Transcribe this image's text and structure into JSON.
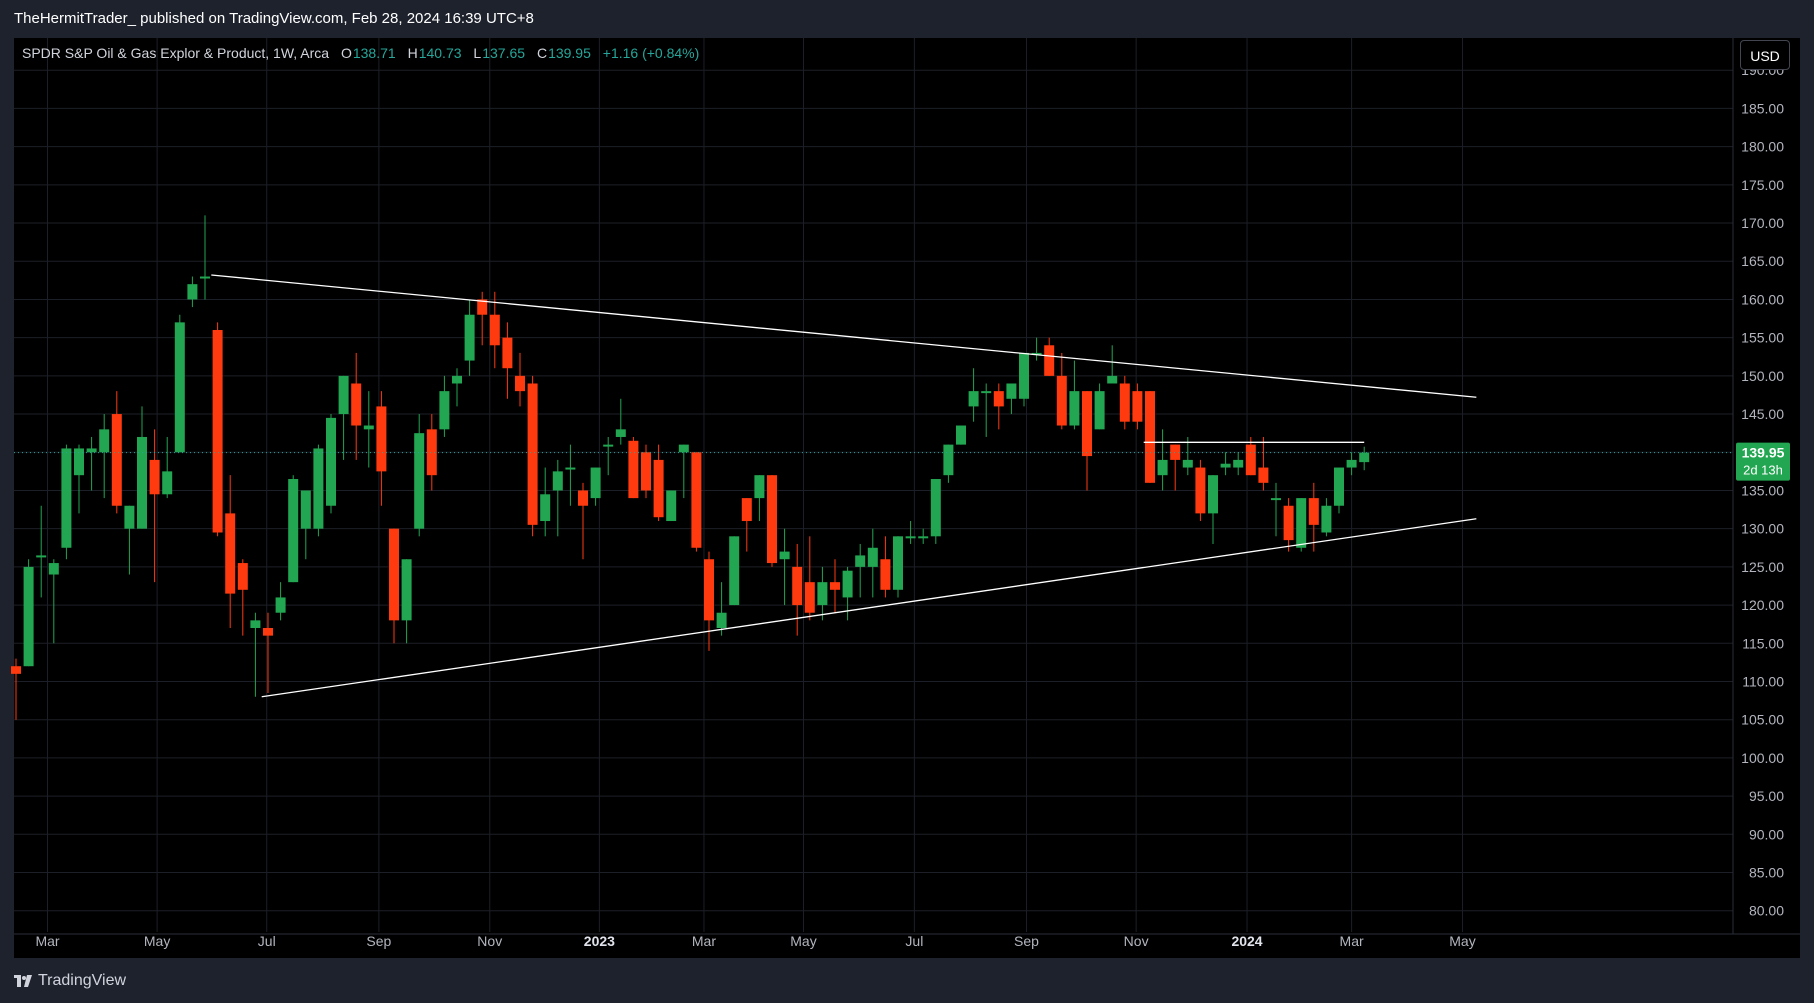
{
  "header": {
    "publisher_text": "TheHermitTrader_ published on TradingView.com, Feb 28, 2024 16:39 UTC+8"
  },
  "footer": {
    "brand": "TradingView"
  },
  "currency_button": "USD",
  "legend": {
    "symbol": "SPDR S&P Oil & Gas Explor & Product, 1W, Arca",
    "o_label": "O",
    "o": "138.71",
    "h_label": "H",
    "h": "140.73",
    "l_label": "L",
    "l": "137.65",
    "c_label": "C",
    "c": "139.95",
    "change": "+1.16 (+0.84%)"
  },
  "price_badge": {
    "price": "139.95",
    "countdown": "2d 13h"
  },
  "colors": {
    "up": "#22a651",
    "down": "#ff3a0f",
    "grid": "#1c1f27",
    "axis_text": "#b2b5be",
    "trend": "#ffffff",
    "dotted": "#26a69a"
  },
  "chart_data": {
    "type": "candlestick",
    "interval": "1W",
    "ylim": [
      78.0,
      193.3
    ],
    "y_ticks": [
      "190.00",
      "185.00",
      "180.00",
      "175.00",
      "170.00",
      "165.00",
      "160.00",
      "155.00",
      "150.00",
      "145.00",
      "140.00",
      "135.00",
      "130.00",
      "125.00",
      "120.00",
      "115.00",
      "110.00",
      "105.00",
      "100.00",
      "95.00",
      "90.00",
      "85.00",
      "80.00"
    ],
    "x_ticks": [
      {
        "label": "Mar",
        "t": 2.5,
        "bold": false
      },
      {
        "label": "May",
        "t": 11.2,
        "bold": false
      },
      {
        "label": "Jul",
        "t": 19.9,
        "bold": false
      },
      {
        "label": "Sep",
        "t": 28.8,
        "bold": false
      },
      {
        "label": "Nov",
        "t": 37.6,
        "bold": false
      },
      {
        "label": "2023",
        "t": 46.3,
        "bold": true
      },
      {
        "label": "Mar",
        "t": 54.6,
        "bold": false
      },
      {
        "label": "May",
        "t": 62.5,
        "bold": false
      },
      {
        "label": "Jul",
        "t": 71.3,
        "bold": false
      },
      {
        "label": "Sep",
        "t": 80.2,
        "bold": false
      },
      {
        "label": "Nov",
        "t": 88.9,
        "bold": false
      },
      {
        "label": "2024",
        "t": 97.7,
        "bold": true
      },
      {
        "label": "Mar",
        "t": 106.0,
        "bold": false
      },
      {
        "label": "May",
        "t": 114.8,
        "bold": false
      }
    ],
    "candles": [
      {
        "o": 112,
        "h": 113,
        "l": 105,
        "c": 111
      },
      {
        "o": 112,
        "h": 126,
        "l": 112,
        "c": 125
      },
      {
        "o": 126.5,
        "h": 133,
        "l": 121,
        "c": 126.5
      },
      {
        "o": 124,
        "h": 126,
        "l": 115,
        "c": 125.5
      },
      {
        "o": 127.5,
        "h": 141,
        "l": 126,
        "c": 140.5
      },
      {
        "o": 137,
        "h": 141,
        "l": 132,
        "c": 140.5
      },
      {
        "o": 140,
        "h": 142,
        "l": 135,
        "c": 140.5
      },
      {
        "o": 140,
        "h": 145,
        "l": 134,
        "c": 143
      },
      {
        "o": 145,
        "h": 148,
        "l": 132,
        "c": 133
      },
      {
        "o": 130,
        "h": 133,
        "l": 124,
        "c": 133
      },
      {
        "o": 130,
        "h": 146,
        "l": 130,
        "c": 142
      },
      {
        "o": 139,
        "h": 143,
        "l": 123,
        "c": 134.5
      },
      {
        "o": 134.5,
        "h": 142,
        "l": 134,
        "c": 137.5
      },
      {
        "o": 140,
        "h": 158,
        "l": 140,
        "c": 157
      },
      {
        "o": 160,
        "h": 163,
        "l": 159,
        "c": 162
      },
      {
        "o": 163,
        "h": 171,
        "l": 160,
        "c": 163
      },
      {
        "o": 156,
        "h": 157,
        "l": 129,
        "c": 129.5
      },
      {
        "o": 132,
        "h": 137,
        "l": 117,
        "c": 121.5
      },
      {
        "o": 125.5,
        "h": 126,
        "l": 116,
        "c": 122
      },
      {
        "o": 117,
        "h": 119,
        "l": 108,
        "c": 118
      },
      {
        "o": 117,
        "h": 119,
        "l": 108.5,
        "c": 116
      },
      {
        "o": 119,
        "h": 123,
        "l": 118,
        "c": 121
      },
      {
        "o": 123,
        "h": 137,
        "l": 123,
        "c": 136.5
      },
      {
        "o": 130,
        "h": 134,
        "l": 126,
        "c": 135
      },
      {
        "o": 130,
        "h": 141,
        "l": 129,
        "c": 140.5
      },
      {
        "o": 133,
        "h": 145,
        "l": 132,
        "c": 144.5
      },
      {
        "o": 145,
        "h": 150,
        "l": 139,
        "c": 150
      },
      {
        "o": 149,
        "h": 153,
        "l": 139,
        "c": 143.5
      },
      {
        "o": 143,
        "h": 148,
        "l": 138,
        "c": 143.5
      },
      {
        "o": 146,
        "h": 148,
        "l": 133,
        "c": 137.5
      },
      {
        "o": 130,
        "h": 130,
        "l": 115,
        "c": 118
      },
      {
        "o": 118,
        "h": 126,
        "l": 115,
        "c": 126
      },
      {
        "o": 130,
        "h": 145,
        "l": 129,
        "c": 142.5
      },
      {
        "o": 143,
        "h": 145,
        "l": 135,
        "c": 137
      },
      {
        "o": 143,
        "h": 150,
        "l": 142,
        "c": 148
      },
      {
        "o": 149,
        "h": 151,
        "l": 146,
        "c": 150
      },
      {
        "o": 152,
        "h": 160,
        "l": 150,
        "c": 158
      },
      {
        "o": 160,
        "h": 161,
        "l": 154,
        "c": 158
      },
      {
        "o": 158,
        "h": 161,
        "l": 151,
        "c": 154
      },
      {
        "o": 155,
        "h": 157,
        "l": 147,
        "c": 151
      },
      {
        "o": 150,
        "h": 153,
        "l": 146,
        "c": 148
      },
      {
        "o": 149,
        "h": 150,
        "l": 129,
        "c": 130.5
      },
      {
        "o": 131,
        "h": 138,
        "l": 129,
        "c": 134.5
      },
      {
        "o": 135,
        "h": 139,
        "l": 129,
        "c": 137.5
      },
      {
        "o": 138,
        "h": 141,
        "l": 133,
        "c": 138
      },
      {
        "o": 135,
        "h": 136,
        "l": 126,
        "c": 133
      },
      {
        "o": 134,
        "h": 138,
        "l": 133,
        "c": 138
      },
      {
        "o": 141,
        "h": 142,
        "l": 137,
        "c": 141
      },
      {
        "o": 142,
        "h": 147,
        "l": 141,
        "c": 143
      },
      {
        "o": 141.5,
        "h": 142,
        "l": 134,
        "c": 134
      },
      {
        "o": 140,
        "h": 141,
        "l": 134,
        "c": 135
      },
      {
        "o": 139,
        "h": 141,
        "l": 131,
        "c": 131.5
      },
      {
        "o": 131,
        "h": 135,
        "l": 131,
        "c": 135
      },
      {
        "o": 140,
        "h": 141,
        "l": 134,
        "c": 141
      },
      {
        "o": 140,
        "h": 140,
        "l": 127,
        "c": 127.5
      },
      {
        "o": 126,
        "h": 127,
        "l": 114,
        "c": 118
      },
      {
        "o": 117,
        "h": 123,
        "l": 116,
        "c": 119
      },
      {
        "o": 120,
        "h": 129,
        "l": 120,
        "c": 129
      },
      {
        "o": 134,
        "h": 134,
        "l": 127,
        "c": 131
      },
      {
        "o": 134,
        "h": 137,
        "l": 131,
        "c": 137
      },
      {
        "o": 137,
        "h": 137,
        "l": 125,
        "c": 125.5
      },
      {
        "o": 126,
        "h": 130,
        "l": 120,
        "c": 127
      },
      {
        "o": 125,
        "h": 128,
        "l": 116,
        "c": 120
      },
      {
        "o": 123,
        "h": 129,
        "l": 118,
        "c": 119
      },
      {
        "o": 120,
        "h": 125,
        "l": 118,
        "c": 123
      },
      {
        "o": 123,
        "h": 126,
        "l": 119,
        "c": 122
      },
      {
        "o": 121,
        "h": 125,
        "l": 118,
        "c": 124.5
      },
      {
        "o": 125,
        "h": 128,
        "l": 121,
        "c": 126.5
      },
      {
        "o": 125,
        "h": 130,
        "l": 121,
        "c": 127.5
      },
      {
        "o": 126,
        "h": 129,
        "l": 121,
        "c": 122
      },
      {
        "o": 122,
        "h": 129,
        "l": 121,
        "c": 129
      },
      {
        "o": 129,
        "h": 131,
        "l": 128,
        "c": 129
      },
      {
        "o": 129,
        "h": 130,
        "l": 128,
        "c": 129
      },
      {
        "o": 129,
        "h": 136,
        "l": 128,
        "c": 136.5
      },
      {
        "o": 137,
        "h": 141,
        "l": 136,
        "c": 141
      },
      {
        "o": 141,
        "h": 143,
        "l": 141,
        "c": 143.5
      },
      {
        "o": 146,
        "h": 151,
        "l": 144,
        "c": 148
      },
      {
        "o": 148,
        "h": 149,
        "l": 142,
        "c": 148
      },
      {
        "o": 148,
        "h": 149,
        "l": 143,
        "c": 146
      },
      {
        "o": 147,
        "h": 149,
        "l": 145,
        "c": 149
      },
      {
        "o": 147,
        "h": 153,
        "l": 146,
        "c": 153
      },
      {
        "o": 153,
        "h": 155,
        "l": 152,
        "c": 153
      },
      {
        "o": 154,
        "h": 155,
        "l": 150,
        "c": 150
      },
      {
        "o": 150,
        "h": 153,
        "l": 143,
        "c": 143.5
      },
      {
        "o": 143.5,
        "h": 152,
        "l": 143,
        "c": 148
      },
      {
        "o": 148,
        "h": 148,
        "l": 135,
        "c": 139.5
      },
      {
        "o": 143,
        "h": 149,
        "l": 143,
        "c": 148
      },
      {
        "o": 149,
        "h": 154,
        "l": 149,
        "c": 150
      },
      {
        "o": 149,
        "h": 150,
        "l": 143,
        "c": 144
      },
      {
        "o": 148,
        "h": 149,
        "l": 143,
        "c": 144
      },
      {
        "o": 148,
        "h": 148,
        "l": 136,
        "c": 136
      },
      {
        "o": 137,
        "h": 143,
        "l": 135,
        "c": 139
      },
      {
        "o": 141,
        "h": 141,
        "l": 135,
        "c": 139
      },
      {
        "o": 138,
        "h": 142,
        "l": 137,
        "c": 139
      },
      {
        "o": 138,
        "h": 139,
        "l": 131,
        "c": 132
      },
      {
        "o": 132,
        "h": 137,
        "l": 128,
        "c": 137
      },
      {
        "o": 138,
        "h": 140,
        "l": 137,
        "c": 138.5
      },
      {
        "o": 138,
        "h": 140,
        "l": 137,
        "c": 139
      },
      {
        "o": 141,
        "h": 142,
        "l": 137,
        "c": 137
      },
      {
        "o": 138,
        "h": 142,
        "l": 135,
        "c": 136
      },
      {
        "o": 134,
        "h": 136,
        "l": 129,
        "c": 134
      },
      {
        "o": 133,
        "h": 134,
        "l": 127,
        "c": 128.5
      },
      {
        "o": 127.5,
        "h": 134,
        "l": 127,
        "c": 134
      },
      {
        "o": 134,
        "h": 136,
        "l": 127,
        "c": 130.5
      },
      {
        "o": 129.5,
        "h": 134,
        "l": 129,
        "c": 133
      },
      {
        "o": 133,
        "h": 138,
        "l": 132,
        "c": 138
      },
      {
        "o": 138,
        "h": 140,
        "l": 137,
        "c": 139
      },
      {
        "o": 138.71,
        "h": 140.73,
        "l": 137.65,
        "c": 139.95
      }
    ],
    "trendlines": [
      {
        "name": "upper",
        "t1": 15.5,
        "p1": 163.2,
        "t2": 115.9,
        "p2": 147.2
      },
      {
        "name": "lower",
        "t1": 19.5,
        "p1": 108.0,
        "t2": 115.9,
        "p2": 131.3
      },
      {
        "name": "resistance",
        "t1": 89.5,
        "p1": 141.3,
        "t2": 107.0,
        "p2": 141.3
      }
    ],
    "last_price": 139.95
  }
}
